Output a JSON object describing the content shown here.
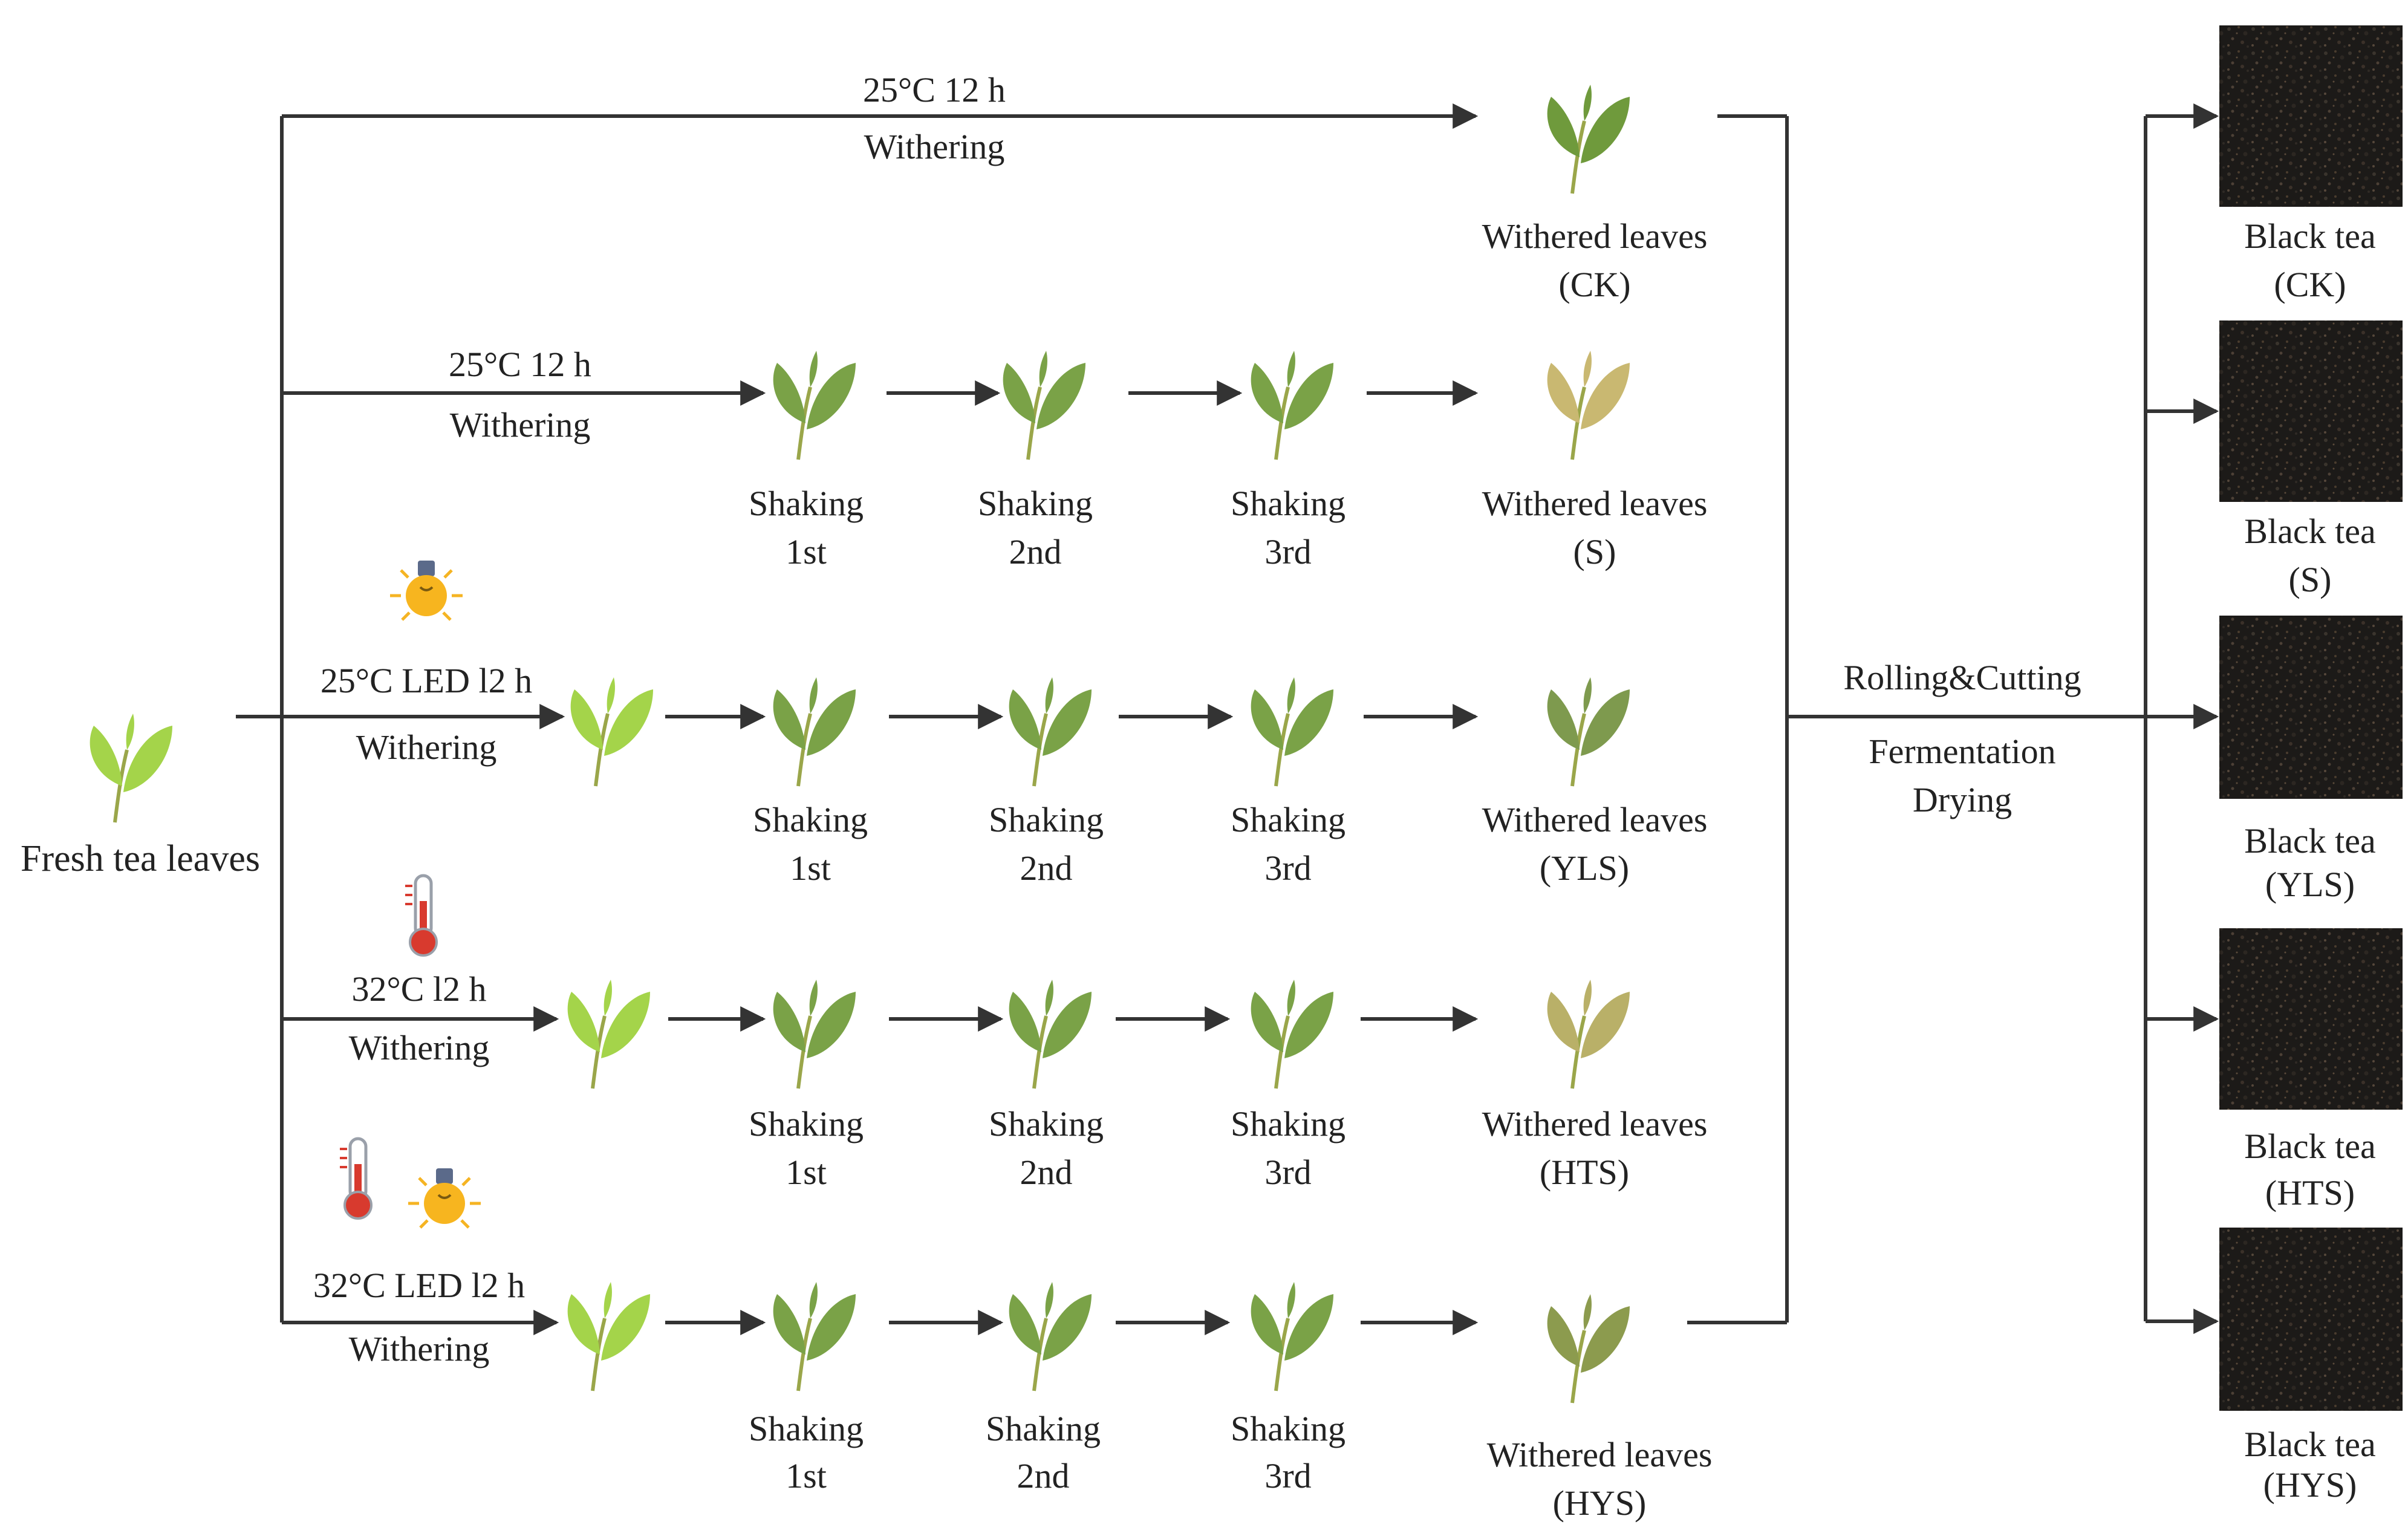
{
  "fresh": {
    "label": "Fresh tea leaves"
  },
  "rows": [
    {
      "id": "ck",
      "condition": "25°C 12 h",
      "process": "Withering",
      "conditions_icons": [],
      "shaking": [],
      "withered": [
        "Withered leaves",
        "(CK)"
      ],
      "black_tea": [
        "Black tea",
        "(CK)"
      ]
    },
    {
      "id": "s",
      "condition": "25°C 12 h",
      "process": "Withering",
      "conditions_icons": [],
      "shaking": [
        [
          "Shaking",
          "1st"
        ],
        [
          "Shaking",
          "2nd"
        ],
        [
          "Shaking",
          "3rd"
        ]
      ],
      "withered": [
        "Withered leaves",
        "(S)"
      ],
      "black_tea": [
        "Black tea",
        "(S)"
      ]
    },
    {
      "id": "yls",
      "condition": "25°C LED l2 h",
      "process": "Withering",
      "conditions_icons": [
        "light-bulb-icon"
      ],
      "shaking": [
        [
          "Shaking",
          "1st"
        ],
        [
          "Shaking",
          "2nd"
        ],
        [
          "Shaking",
          "3rd"
        ]
      ],
      "withered": [
        "Withered leaves",
        "(YLS)"
      ],
      "black_tea": [
        "Black tea",
        "(YLS)"
      ]
    },
    {
      "id": "hts",
      "condition": "32°C l2 h",
      "process": "Withering",
      "conditions_icons": [
        "thermometer-icon"
      ],
      "shaking": [
        [
          "Shaking",
          "1st"
        ],
        [
          "Shaking",
          "2nd"
        ],
        [
          "Shaking",
          "3rd"
        ]
      ],
      "withered": [
        "Withered leaves",
        "(HTS)"
      ],
      "black_tea": [
        "Black tea",
        "(HTS)"
      ]
    },
    {
      "id": "hys",
      "condition": "32°C LED l2 h",
      "process": "Withering",
      "conditions_icons": [
        "thermometer-icon",
        "light-bulb-icon"
      ],
      "shaking": [
        [
          "Shaking",
          "1st"
        ],
        [
          "Shaking",
          "2nd"
        ],
        [
          "Shaking",
          "3rd"
        ]
      ],
      "withered": [
        "Withered leaves",
        "(HYS)"
      ],
      "black_tea": [
        "Black tea",
        "(HYS)"
      ]
    }
  ],
  "post_process": {
    "step1": "Rolling&Cutting",
    "step2": "Fermentation",
    "step3": "Drying"
  },
  "colors": {
    "line": "#333333",
    "leaf_fresh": "#a4d44a",
    "leaf_withered": "#6f9a3c",
    "leaf_yellow": "#c9b871",
    "tea": "#1c1a18",
    "bulb": "#f5b423",
    "thermo": "#d83a2e"
  }
}
